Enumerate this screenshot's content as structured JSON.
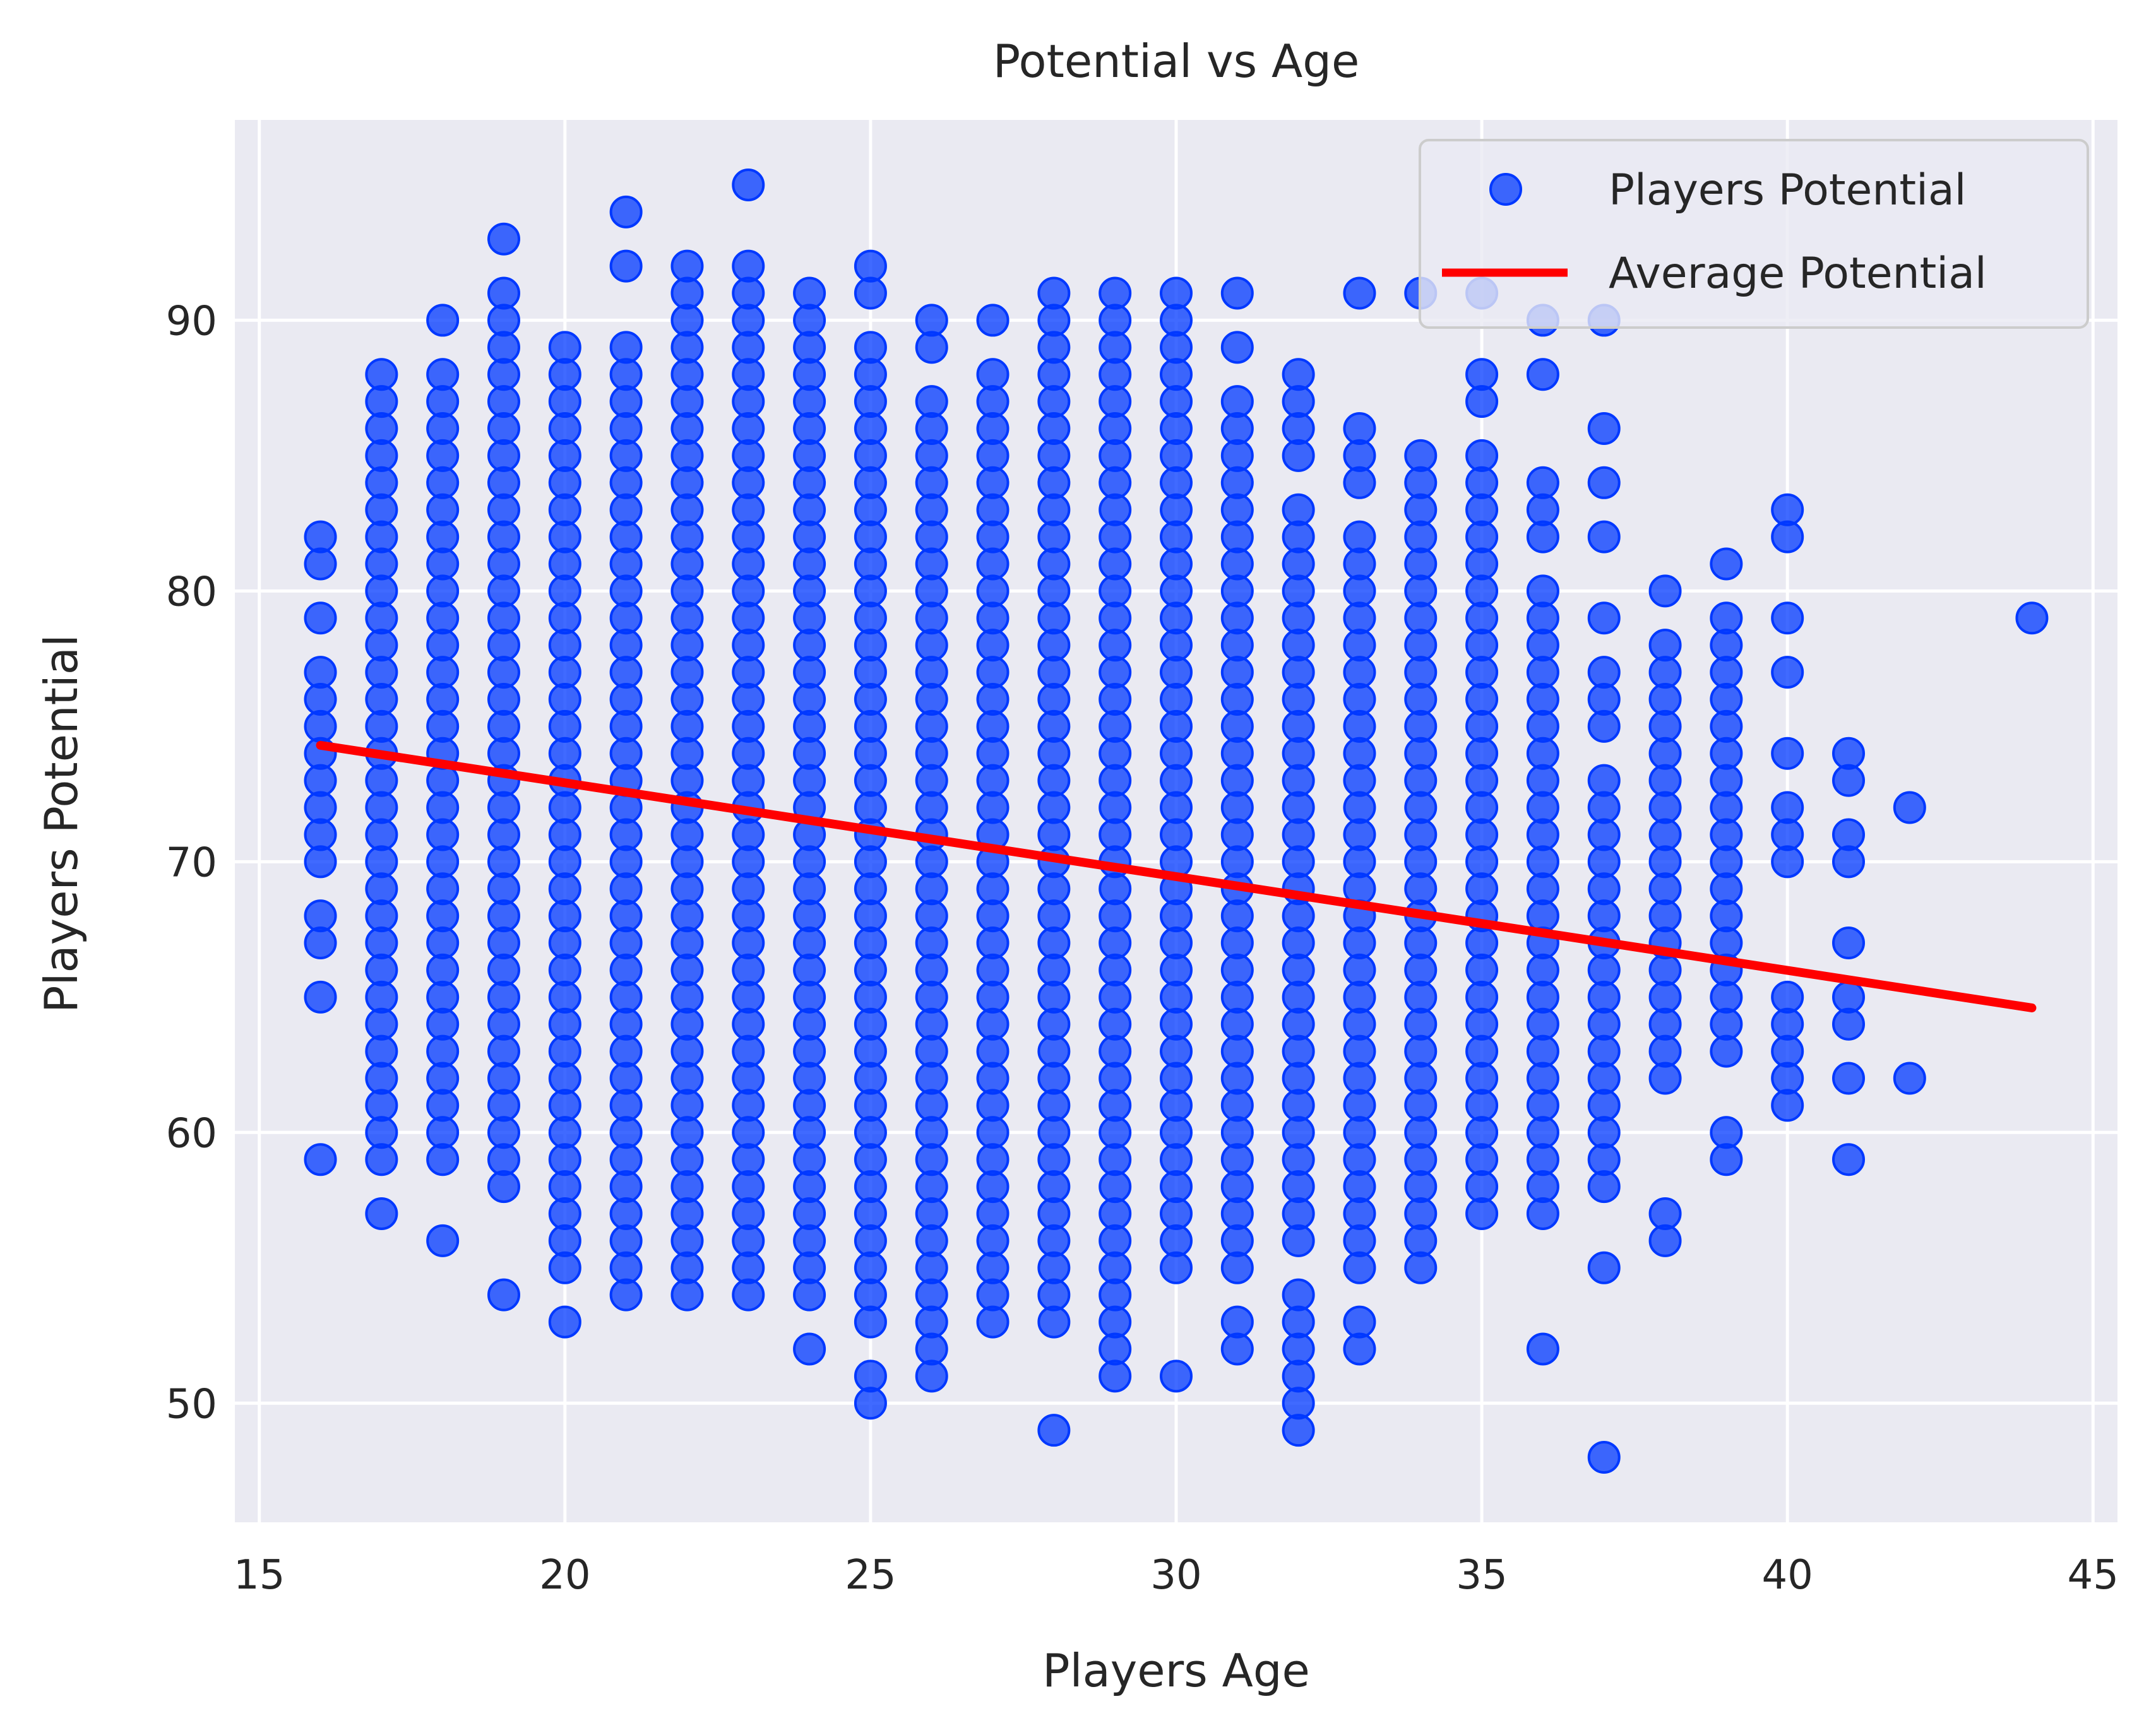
{
  "chart_data": {
    "type": "scatter",
    "title": "Potential vs Age",
    "xlabel": "Players Age",
    "ylabel": "Players Potential",
    "xlim": [
      14.6,
      45.4
    ],
    "ylim": [
      45.6,
      97.4
    ],
    "xticks": [
      15,
      20,
      25,
      30,
      35,
      40,
      45
    ],
    "yticks": [
      50,
      60,
      70,
      80,
      90
    ],
    "grid": true,
    "legend_position": "top-right",
    "colors": {
      "background": "#EAEAF2",
      "grid": "#FFFFFF",
      "points": "#0038FF",
      "line": "#FF0000"
    },
    "series": [
      {
        "name": "Players Potential",
        "kind": "scatter",
        "columns": [
          {
            "x": 16,
            "range": [
              70,
              77
            ],
            "outliers": [
              59,
              65,
              67,
              68,
              79,
              81,
              82
            ]
          },
          {
            "x": 17,
            "range": [
              59,
              88
            ],
            "outliers": [
              57
            ]
          },
          {
            "x": 18,
            "range": [
              59,
              88
            ],
            "outliers": [
              56,
              90
            ]
          },
          {
            "x": 19,
            "range": [
              58,
              91
            ],
            "outliers": [
              54,
              93
            ]
          },
          {
            "x": 20,
            "range": [
              55,
              89
            ],
            "outliers": [
              53
            ]
          },
          {
            "x": 21,
            "range": [
              54,
              89
            ],
            "outliers": [
              92,
              94
            ]
          },
          {
            "x": 22,
            "range": [
              54,
              92
            ],
            "outliers": []
          },
          {
            "x": 23,
            "range": [
              54,
              92
            ],
            "outliers": [
              95
            ]
          },
          {
            "x": 24,
            "range": [
              54,
              91
            ],
            "outliers": [
              52
            ]
          },
          {
            "x": 25,
            "range": [
              53,
              89
            ],
            "outliers": [
              50,
              51,
              91,
              92
            ]
          },
          {
            "x": 26,
            "range": [
              51,
              87
            ],
            "outliers": [
              89,
              90
            ]
          },
          {
            "x": 27,
            "range": [
              53,
              88
            ],
            "outliers": [
              90
            ]
          },
          {
            "x": 28,
            "range": [
              53,
              91
            ],
            "outliers": [
              49
            ]
          },
          {
            "x": 29,
            "range": [
              51,
              91
            ],
            "outliers": []
          },
          {
            "x": 30,
            "range": [
              55,
              91
            ],
            "outliers": [
              51
            ]
          },
          {
            "x": 31,
            "range": [
              55,
              87
            ],
            "outliers": [
              52,
              53,
              89,
              91
            ]
          },
          {
            "x": 32,
            "range": [
              56,
              83
            ],
            "outliers": [
              49,
              50,
              51,
              52,
              53,
              54,
              85,
              86,
              87,
              88
            ]
          },
          {
            "x": 33,
            "range": [
              55,
              82
            ],
            "outliers": [
              52,
              53,
              84,
              85,
              86,
              91
            ]
          },
          {
            "x": 34,
            "range": [
              55,
              85
            ],
            "outliers": [
              91
            ]
          },
          {
            "x": 35,
            "range": [
              57,
              85
            ],
            "outliers": [
              87,
              88,
              91
            ]
          },
          {
            "x": 36,
            "range": [
              57,
              79
            ],
            "outliers": [
              52,
              80,
              82,
              83,
              84,
              88,
              90
            ]
          },
          {
            "x": 37,
            "range": [
              58,
              73
            ],
            "outliers": [
              48,
              55,
              75,
              76,
              77,
              79,
              82,
              84,
              86,
              90
            ]
          },
          {
            "x": 38,
            "range": [
              62,
              78
            ],
            "outliers": [
              56,
              57,
              80
            ]
          },
          {
            "x": 39,
            "range": [
              63,
              79
            ],
            "outliers": [
              59,
              60,
              81
            ]
          },
          {
            "x": 40,
            "range": [
              61,
              65
            ],
            "outliers": [
              70,
              71,
              72,
              74,
              77,
              79,
              82,
              83
            ]
          },
          {
            "x": 41,
            "range": [
              59,
              59
            ],
            "outliers": [
              62,
              64,
              65,
              67,
              70,
              71,
              73,
              74
            ]
          },
          {
            "x": 42,
            "range": [
              62,
              62
            ],
            "outliers": [
              72
            ]
          },
          {
            "x": 44,
            "range": [
              79,
              79
            ],
            "outliers": []
          }
        ]
      },
      {
        "name": "Average Potential",
        "kind": "line",
        "x": [
          16,
          44
        ],
        "y": [
          74.3,
          64.6
        ]
      }
    ]
  }
}
